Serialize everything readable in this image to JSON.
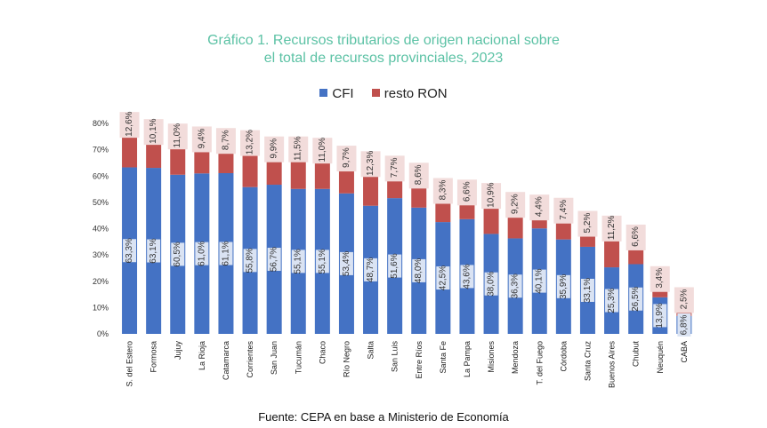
{
  "title_line1": "Gráfico 1. Recursos tributarios de origen nacional sobre",
  "title_line2": "el total de recursos provinciales, 2023",
  "source": "Fuente: CEPA en base a Ministerio de Economía",
  "colors": {
    "cfi": "#4472c4",
    "resto": "#c0504d",
    "cfi_label_bg": "#dae3f3",
    "resto_label_bg": "#f2dcdb",
    "title": "#5cc2a5"
  },
  "chart_data": {
    "type": "bar",
    "stacked": true,
    "title": "Gráfico 1. Recursos tributarios de origen nacional sobre el total de recursos provinciales, 2023",
    "legend_position": "top",
    "grid": false,
    "ylim": [
      0,
      80
    ],
    "yticks": [
      "0%",
      "10%",
      "20%",
      "30%",
      "40%",
      "50%",
      "60%",
      "70%",
      "80%"
    ],
    "categories": [
      "S. del Estero",
      "Formosa",
      "Jujuy",
      "La Rioja",
      "Catamarca",
      "Corrientes",
      "San Juan",
      "Tucumán",
      "Chaco",
      "Río Negro",
      "Salta",
      "San Luis",
      "Entre Ríos",
      "Santa Fe",
      "La Pampa",
      "Misiones",
      "Mendoza",
      "T. del Fuego",
      "Córdoba",
      "Santa Cruz",
      "Buenos Aires",
      "Chubut",
      "Neuquén",
      "CABA"
    ],
    "series": [
      {
        "name": "CFI",
        "values": [
          63.3,
          63.1,
          60.5,
          61.0,
          61.1,
          55.8,
          56.7,
          55.1,
          55.1,
          53.4,
          48.7,
          51.6,
          48.0,
          42.5,
          43.6,
          38.0,
          36.3,
          40.1,
          35.9,
          33.1,
          25.3,
          26.5,
          13.9,
          6.8
        ],
        "labels": [
          "63,3%",
          "63,1%",
          "60,5%",
          "61,0%",
          "61,1%",
          "55,8%",
          "56,7%",
          "55,1%",
          "55,1%",
          "53,4%",
          "48,7%",
          "51,6%",
          "48,0%",
          "42,5%",
          "43,6%",
          "38,0%",
          "36,3%",
          "40,1%",
          "35,9%",
          "33,1%",
          "25,3%",
          "26,5%",
          "13,9%",
          "6,8%"
        ]
      },
      {
        "name": "resto RON",
        "values": [
          12.6,
          10.1,
          11.0,
          9.4,
          8.7,
          13.2,
          9.9,
          11.5,
          11.0,
          9.7,
          12.3,
          7.7,
          8.6,
          8.3,
          6.6,
          10.9,
          9.2,
          4.4,
          7.4,
          5.2,
          11.2,
          6.6,
          3.4,
          2.5
        ],
        "labels": [
          "12,6%",
          "10,1%",
          "11,0%",
          "9,4%",
          "8,7%",
          "13,2%",
          "9,9%",
          "11,5%",
          "11,0%",
          "9,7%",
          "12,3%",
          "7,7%",
          "8,6%",
          "8,3%",
          "6,6%",
          "10,9%",
          "9,2%",
          "4,4%",
          "7,4%",
          "5,2%",
          "11,2%",
          "6,6%",
          "3,4%",
          "2,5%"
        ]
      }
    ]
  }
}
